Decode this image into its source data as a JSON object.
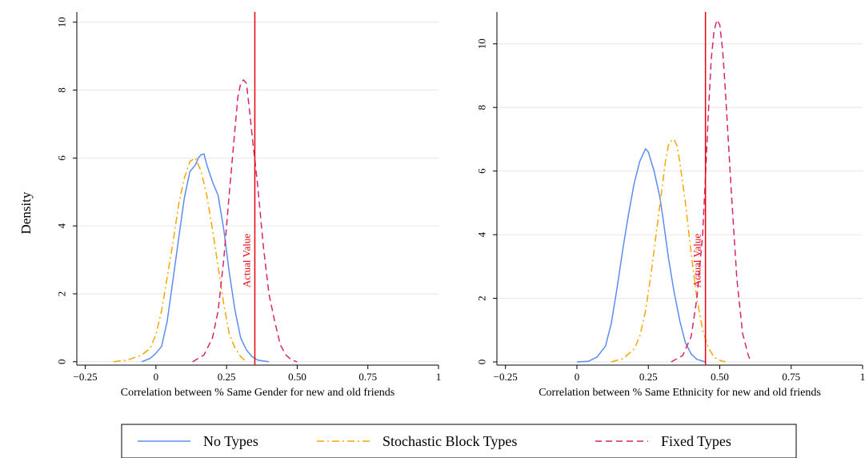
{
  "figure": {
    "shared_ylabel": "Density",
    "legend": [
      {
        "label": "No Types",
        "color": "#5b8def",
        "dash": "solid"
      },
      {
        "label": "Stochastic Block Types",
        "color": "#f5a800",
        "dash": "dashdot"
      },
      {
        "label": "Fixed Types",
        "color": "#d6246e",
        "dash": "dash"
      }
    ]
  },
  "chart_data": [
    {
      "type": "line",
      "xlabel": "Correlation between % Same Gender for new and old friends",
      "ylabel": "Density",
      "xlim": [
        -0.28,
        1.0
      ],
      "ylim": [
        -0.1,
        10.3
      ],
      "xticks": [
        -0.25,
        0,
        0.25,
        0.5,
        0.75,
        1
      ],
      "xtick_labels": [
        "−0.25",
        "0",
        "0.25",
        "0.50",
        "0.75",
        "1"
      ],
      "yticks": [
        0,
        2,
        4,
        6,
        8,
        10
      ],
      "ytick_labels": [
        "0",
        "2",
        "4",
        "6",
        "8",
        "10"
      ],
      "grid": "horizontal",
      "reference_line": {
        "x": 0.35,
        "label": "Actual Value",
        "color": "#e8000b"
      },
      "series": [
        {
          "name": "No Types",
          "color": "#5b8def",
          "dash": "solid",
          "x": [
            -0.05,
            -0.02,
            0.0,
            0.02,
            0.04,
            0.06,
            0.08,
            0.1,
            0.12,
            0.14,
            0.15,
            0.16,
            0.17,
            0.18,
            0.2,
            0.22,
            0.24,
            0.26,
            0.28,
            0.3,
            0.32,
            0.34,
            0.36,
            0.38,
            0.4
          ],
          "y": [
            0.0,
            0.1,
            0.25,
            0.45,
            1.2,
            2.4,
            3.6,
            4.8,
            5.6,
            5.8,
            6.0,
            6.1,
            6.12,
            5.8,
            5.3,
            4.9,
            3.9,
            2.6,
            1.5,
            0.7,
            0.35,
            0.15,
            0.05,
            0.02,
            0.0
          ]
        },
        {
          "name": "Stochastic Block Types",
          "color": "#f5a800",
          "dash": "dashdot",
          "x": [
            -0.15,
            -0.1,
            -0.05,
            -0.02,
            0.0,
            0.02,
            0.04,
            0.06,
            0.08,
            0.1,
            0.12,
            0.14,
            0.16,
            0.18,
            0.2,
            0.22,
            0.24,
            0.26,
            0.28,
            0.3,
            0.32
          ],
          "y": [
            0.0,
            0.05,
            0.2,
            0.4,
            0.8,
            1.5,
            2.5,
            3.5,
            4.6,
            5.4,
            5.9,
            6.0,
            5.6,
            4.9,
            3.9,
            2.8,
            1.7,
            0.8,
            0.4,
            0.15,
            0.0
          ]
        },
        {
          "name": "Fixed Types",
          "color": "#d6246e",
          "dash": "dash",
          "x": [
            0.13,
            0.17,
            0.2,
            0.22,
            0.24,
            0.26,
            0.28,
            0.29,
            0.3,
            0.31,
            0.32,
            0.33,
            0.34,
            0.36,
            0.38,
            0.4,
            0.42,
            0.44,
            0.46,
            0.48,
            0.5
          ],
          "y": [
            0.0,
            0.2,
            0.7,
            1.5,
            3.0,
            5.0,
            6.9,
            7.8,
            8.2,
            8.3,
            8.2,
            7.5,
            6.7,
            5.2,
            3.4,
            2.0,
            1.2,
            0.5,
            0.2,
            0.05,
            0.0
          ]
        }
      ]
    },
    {
      "type": "line",
      "xlabel": "Correlation between % Same Ethnicity for new and old friends",
      "ylabel": "Density",
      "xlim": [
        -0.28,
        1.0
      ],
      "ylim": [
        -0.1,
        11.0
      ],
      "xticks": [
        -0.25,
        0,
        0.25,
        0.5,
        0.75,
        1
      ],
      "xtick_labels": [
        "−0.25",
        "0",
        "0.25",
        "0.50",
        "0.75",
        "1"
      ],
      "yticks": [
        0,
        2,
        4,
        6,
        8,
        10
      ],
      "ytick_labels": [
        "0",
        "2",
        "4",
        "6",
        "8",
        "10"
      ],
      "grid": "horizontal",
      "reference_line": {
        "x": 0.45,
        "label": "Actual Value",
        "color": "#e8000b"
      },
      "series": [
        {
          "name": "No Types",
          "color": "#5b8def",
          "dash": "solid",
          "x": [
            0.0,
            0.04,
            0.07,
            0.1,
            0.12,
            0.14,
            0.16,
            0.18,
            0.2,
            0.22,
            0.24,
            0.25,
            0.27,
            0.29,
            0.3,
            0.32,
            0.34,
            0.36,
            0.38,
            0.4,
            0.42,
            0.45
          ],
          "y": [
            0.0,
            0.02,
            0.15,
            0.5,
            1.2,
            2.3,
            3.5,
            4.6,
            5.6,
            6.3,
            6.7,
            6.6,
            6.0,
            5.2,
            4.6,
            3.3,
            2.2,
            1.3,
            0.6,
            0.25,
            0.08,
            0.0
          ]
        },
        {
          "name": "Stochastic Block Types",
          "color": "#f5a800",
          "dash": "dashdot",
          "x": [
            0.12,
            0.16,
            0.2,
            0.22,
            0.24,
            0.26,
            0.28,
            0.3,
            0.31,
            0.32,
            0.33,
            0.34,
            0.35,
            0.36,
            0.38,
            0.4,
            0.42,
            0.44,
            0.46,
            0.48,
            0.5,
            0.52
          ],
          "y": [
            0.0,
            0.1,
            0.4,
            0.8,
            1.6,
            2.8,
            4.2,
            5.6,
            6.3,
            6.8,
            6.95,
            7.0,
            6.8,
            6.3,
            5.0,
            3.4,
            2.0,
            1.0,
            0.45,
            0.15,
            0.05,
            0.0
          ]
        },
        {
          "name": "Fixed Types",
          "color": "#d6246e",
          "dash": "dash",
          "x": [
            0.33,
            0.37,
            0.4,
            0.42,
            0.44,
            0.45,
            0.46,
            0.47,
            0.48,
            0.49,
            0.5,
            0.51,
            0.52,
            0.54,
            0.56,
            0.58,
            0.6,
            0.61
          ],
          "y": [
            0.0,
            0.2,
            0.8,
            2.0,
            4.0,
            5.8,
            7.8,
            9.5,
            10.4,
            10.75,
            10.6,
            9.8,
            8.5,
            5.4,
            2.6,
            0.9,
            0.2,
            0.0
          ]
        }
      ]
    }
  ]
}
